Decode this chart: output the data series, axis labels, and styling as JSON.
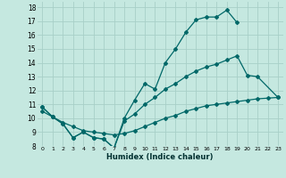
{
  "xlabel": "Humidex (Indice chaleur)",
  "bg_color": "#c5e8e0",
  "grid_color": "#a8cfc8",
  "line_color": "#006868",
  "xlim": [
    -0.5,
    23.5
  ],
  "ylim": [
    8,
    18.4
  ],
  "xticks": [
    0,
    1,
    2,
    3,
    4,
    5,
    6,
    7,
    8,
    9,
    10,
    11,
    12,
    13,
    14,
    15,
    16,
    17,
    18,
    19,
    20,
    21,
    22,
    23
  ],
  "yticks": [
    8,
    9,
    10,
    11,
    12,
    13,
    14,
    15,
    16,
    17,
    18
  ],
  "line1_x": [
    0,
    1,
    2,
    3,
    4,
    5,
    6,
    7,
    8,
    9,
    10,
    11,
    12,
    13,
    14,
    15,
    16,
    17,
    18,
    19
  ],
  "line1_y": [
    10.8,
    10.1,
    9.6,
    8.6,
    9.0,
    8.6,
    8.5,
    7.85,
    10.0,
    11.3,
    12.5,
    12.1,
    14.0,
    15.0,
    16.2,
    17.1,
    17.3,
    17.3,
    17.8,
    16.9
  ],
  "line2_x": [
    0,
    1,
    2,
    3,
    4,
    5,
    6,
    7,
    8,
    9,
    10,
    11,
    12,
    13,
    14,
    15,
    16,
    17,
    18,
    19,
    20,
    21,
    23
  ],
  "line2_y": [
    10.8,
    10.1,
    9.6,
    8.6,
    9.0,
    8.6,
    8.5,
    7.85,
    9.8,
    10.3,
    11.0,
    11.5,
    12.1,
    12.5,
    13.0,
    13.4,
    13.7,
    13.9,
    14.2,
    14.5,
    13.1,
    13.0,
    11.5
  ],
  "line3_x": [
    0,
    1,
    2,
    3,
    4,
    5,
    6,
    7,
    8,
    9,
    10,
    11,
    12,
    13,
    14,
    15,
    16,
    17,
    18,
    19,
    20,
    21,
    22,
    23
  ],
  "line3_y": [
    10.5,
    10.1,
    9.7,
    9.4,
    9.1,
    9.0,
    8.9,
    8.8,
    8.9,
    9.1,
    9.4,
    9.7,
    10.0,
    10.2,
    10.5,
    10.7,
    10.9,
    11.0,
    11.1,
    11.2,
    11.3,
    11.4,
    11.45,
    11.5
  ]
}
